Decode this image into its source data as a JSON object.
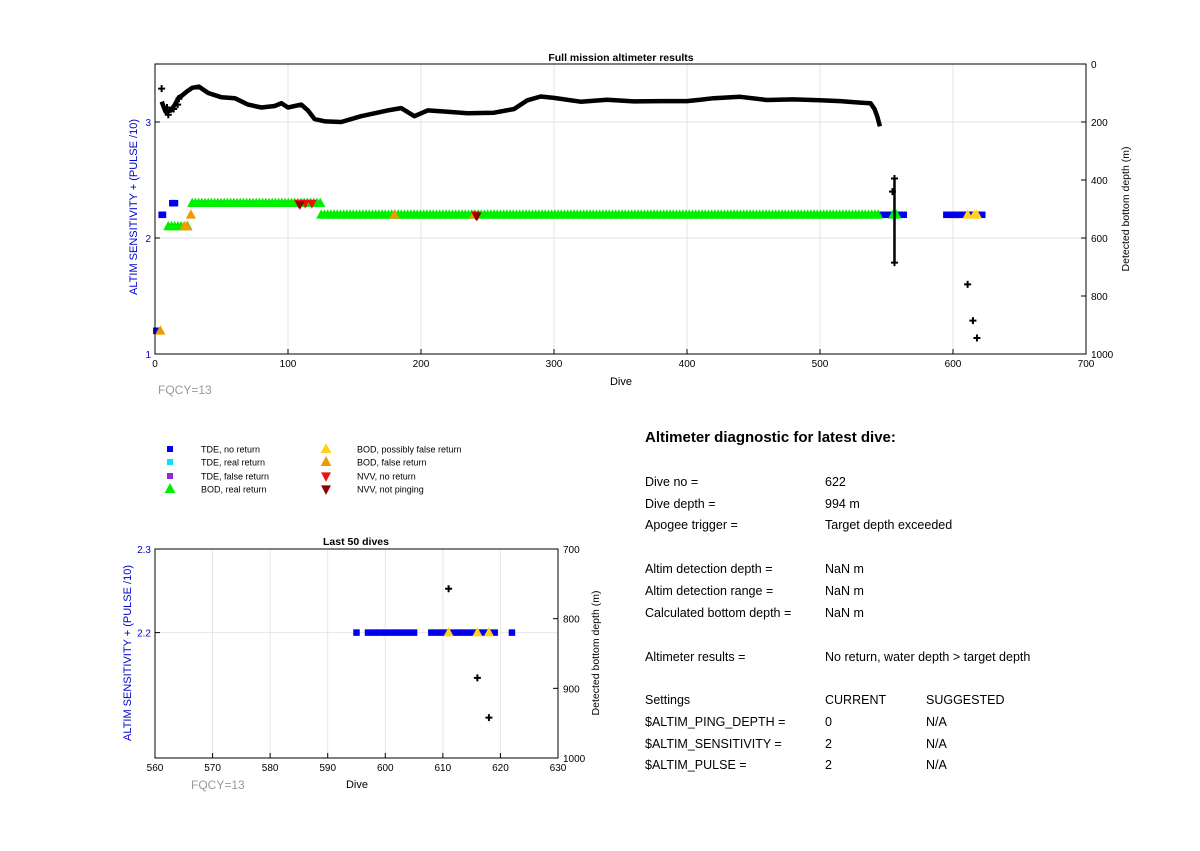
{
  "colors": {
    "axis": "#000000",
    "left_axis": "#0000cc",
    "grid": "#e6e6e6",
    "fqcy": "#999999",
    "tde_no_return": "#0000ee",
    "tde_real_return": "#00e5ee",
    "tde_false_return": "#8a2be2",
    "bod_real_return": "#00ee00",
    "bod_possibly_false": "#ffd21f",
    "bod_false": "#ee9a00",
    "nvv_no_return": "#ee1111",
    "nvv_not_pinging": "#8b0000",
    "bottom_depth": "#000000"
  },
  "chart_data": [
    {
      "id": "full_mission",
      "type": "scatter",
      "title": "Full mission altimeter results",
      "xlabel": "Dive",
      "ylabel_left": "ALTIM SENSITIVITY + (PULSE /10)",
      "ylabel_right": "Detected bottom depth (m)",
      "xlim": [
        0,
        700
      ],
      "ylim_left": [
        1,
        3.5
      ],
      "ylim_right": [
        1000,
        0
      ],
      "right_reversed": true,
      "grid": true,
      "xticks": [
        0,
        100,
        200,
        300,
        400,
        500,
        600,
        700
      ],
      "yticks_left": [
        1,
        2,
        3
      ],
      "yticks_right": [
        0,
        200,
        400,
        600,
        800,
        1000
      ],
      "annotation": "FQCY=13",
      "series": [
        {
          "name": "TDE, no return",
          "marker": "square",
          "color_key": "tde_no_return",
          "points": [
            [
              1,
              1.2
            ],
            [
              2,
              1.2
            ],
            [
              5,
              2.2
            ],
            [
              6,
              2.2
            ],
            [
              13,
              2.3
            ],
            [
              14,
              2.3
            ],
            [
              15,
              2.3
            ],
            [
              545,
              2.2
            ],
            [
              548,
              2.2
            ],
            [
              551,
              2.2
            ],
            [
              554,
              2.2
            ],
            [
              557,
              2.2
            ],
            [
              560,
              2.2
            ],
            [
              563,
              2.2
            ],
            [
              595,
              2.2
            ],
            [
              597,
              2.2
            ],
            [
              599,
              2.2
            ],
            [
              601,
              2.2
            ],
            [
              603,
              2.2
            ],
            [
              605,
              2.2
            ],
            [
              608,
              2.2
            ],
            [
              610,
              2.2
            ],
            [
              612,
              2.2
            ],
            [
              614,
              2.2
            ],
            [
              616,
              2.2
            ],
            [
              618,
              2.2
            ],
            [
              619,
              2.2
            ],
            [
              622,
              2.2
            ]
          ]
        },
        {
          "name": "BOD, real return",
          "marker": "triangle-up",
          "color_key": "bod_real_return",
          "segments": [
            [
              10,
              25,
              2.1
            ],
            [
              28,
              125,
              2.3
            ],
            [
              125,
              545,
              2.2
            ],
            [
              555,
              558,
              2.2
            ]
          ]
        },
        {
          "name": "BOD, possibly false return",
          "marker": "triangle-up",
          "color_key": "bod_possibly_false",
          "points": [
            [
              611,
              2.2
            ],
            [
              616,
              2.2
            ],
            [
              618,
              2.2
            ]
          ]
        },
        {
          "name": "BOD, false return",
          "marker": "triangle-up",
          "color_key": "bod_false",
          "points": [
            [
              4,
              1.2
            ],
            [
              22,
              2.1
            ],
            [
              24,
              2.1
            ],
            [
              27,
              2.2
            ],
            [
              180,
              2.2
            ],
            [
              240,
              2.2
            ]
          ]
        },
        {
          "name": "NVV, no return",
          "marker": "triangle-down",
          "color_key": "nvv_no_return",
          "points": [
            [
              108,
              2.3
            ],
            [
              113,
              2.3
            ],
            [
              118,
              2.3
            ],
            [
              241,
              2.2
            ]
          ]
        },
        {
          "name": "NVV, not pinging",
          "marker": "triangle-down",
          "color_key": "nvv_not_pinging",
          "points": [
            [
              109,
              2.29
            ],
            [
              242,
              2.19
            ]
          ]
        },
        {
          "name": "Detected bottom depth",
          "axis": "right",
          "marker": "plus",
          "color_key": "bottom_depth",
          "line": [
            [
              5,
              130
            ],
            [
              8,
              165
            ],
            [
              12,
              160
            ],
            [
              15,
              140
            ],
            [
              18,
              115
            ],
            [
              20,
              110
            ],
            [
              24,
              95
            ],
            [
              28,
              82
            ],
            [
              33,
              78
            ],
            [
              40,
              100
            ],
            [
              50,
              115
            ],
            [
              60,
              118
            ],
            [
              70,
              140
            ],
            [
              80,
              150
            ],
            [
              90,
              145
            ],
            [
              95,
              135
            ],
            [
              100,
              150
            ],
            [
              110,
              140
            ],
            [
              115,
              160
            ],
            [
              120,
              190
            ],
            [
              128,
              198
            ],
            [
              140,
              200
            ],
            [
              155,
              180
            ],
            [
              165,
              170
            ],
            [
              175,
              160
            ],
            [
              185,
              152
            ],
            [
              195,
              180
            ],
            [
              205,
              160
            ],
            [
              220,
              165
            ],
            [
              235,
              170
            ],
            [
              255,
              168
            ],
            [
              270,
              155
            ],
            [
              280,
              125
            ],
            [
              290,
              112
            ],
            [
              300,
              117
            ],
            [
              320,
              130
            ],
            [
              340,
              123
            ],
            [
              360,
              129
            ],
            [
              380,
              128
            ],
            [
              400,
              128
            ],
            [
              410,
              123
            ],
            [
              420,
              118
            ],
            [
              440,
              113
            ],
            [
              460,
              124
            ],
            [
              480,
              122
            ],
            [
              500,
              125
            ],
            [
              515,
              128
            ],
            [
              530,
              133
            ],
            [
              538,
              135
            ],
            [
              541,
              155
            ],
            [
              543,
              180
            ],
            [
              545,
              215
            ]
          ],
          "isolated": [
            [
              5,
              85
            ],
            [
              9,
              150
            ],
            [
              10,
              175
            ],
            [
              14,
              155
            ],
            [
              17,
              140
            ],
            [
              18,
              120
            ],
            [
              611,
              760
            ],
            [
              615,
              885
            ],
            [
              618,
              945
            ]
          ],
          "vline": {
            "x": 556,
            "y_from": 395,
            "y_to": 685
          }
        }
      ]
    },
    {
      "id": "last_50",
      "type": "scatter",
      "title": "Last 50 dives",
      "xlabel": "Dive",
      "ylabel_left": "ALTIM SENSITIVITY + (PULSE /10)",
      "ylabel_right": "Detected bottom depth (m)",
      "xlim": [
        560,
        630
      ],
      "ylim_left": [
        2.05,
        2.3
      ],
      "ylim_right": [
        1000,
        700
      ],
      "right_reversed": true,
      "grid": true,
      "xticks": [
        560,
        570,
        580,
        590,
        600,
        610,
        620,
        630
      ],
      "yticks_left": [
        2.2,
        2.3
      ],
      "yticks_right": [
        700,
        800,
        900,
        1000
      ],
      "annotation": "FQCY=13",
      "series": [
        {
          "name": "TDE, no return",
          "marker": "square",
          "color_key": "tde_no_return",
          "points": [
            [
              595,
              2.2
            ],
            [
              597,
              2.2
            ],
            [
              598,
              2.2
            ],
            [
              599,
              2.2
            ],
            [
              600,
              2.2
            ],
            [
              601,
              2.2
            ],
            [
              602,
              2.2
            ],
            [
              603,
              2.2
            ],
            [
              604,
              2.2
            ],
            [
              605,
              2.2
            ],
            [
              608,
              2.2
            ],
            [
              609,
              2.2
            ],
            [
              610,
              2.2
            ],
            [
              611,
              2.2
            ],
            [
              612,
              2.2
            ],
            [
              613,
              2.2
            ],
            [
              614,
              2.2
            ],
            [
              615,
              2.2
            ],
            [
              616,
              2.2
            ],
            [
              617,
              2.2
            ],
            [
              618,
              2.2
            ],
            [
              619,
              2.2
            ],
            [
              622,
              2.2
            ]
          ]
        },
        {
          "name": "BOD, possibly false return",
          "marker": "triangle-up",
          "color_key": "bod_possibly_false",
          "points": [
            [
              611,
              2.2
            ],
            [
              616,
              2.2
            ],
            [
              618,
              2.2
            ]
          ]
        },
        {
          "name": "Detected bottom depth",
          "axis": "right",
          "marker": "plus",
          "color_key": "bottom_depth",
          "isolated": [
            [
              611,
              757
            ],
            [
              616,
              885
            ],
            [
              618,
              942
            ]
          ]
        }
      ]
    }
  ],
  "legend": {
    "placement": "below-top-chart",
    "entries": [
      {
        "label": "TDE, no return",
        "marker": "square",
        "color_key": "tde_no_return"
      },
      {
        "label": "BOD, possibly false return",
        "marker": "triangle-up",
        "color_key": "bod_possibly_false"
      },
      {
        "label": "TDE, real return",
        "marker": "square",
        "color_key": "tde_real_return"
      },
      {
        "label": "BOD, false return",
        "marker": "triangle-up",
        "color_key": "bod_false"
      },
      {
        "label": "TDE, false return",
        "marker": "square",
        "color_key": "tde_false_return"
      },
      {
        "label": "NVV, no return",
        "marker": "triangle-down",
        "color_key": "nvv_no_return"
      },
      {
        "label": "BOD, real return",
        "marker": "triangle-up",
        "color_key": "bod_real_return"
      },
      {
        "label": "NVV, not pinging",
        "marker": "triangle-down",
        "color_key": "nvv_not_pinging"
      }
    ]
  },
  "diagnostic": {
    "title": "Altimeter diagnostic for latest dive:",
    "dive_no_label": "Dive no =",
    "dive_no": "622",
    "dive_depth_label": "Dive depth =",
    "dive_depth": "994 m",
    "apogee_label": "Apogee trigger =",
    "apogee": "Target depth exceeded",
    "det_depth_label": "Altim detection depth =",
    "det_depth": "NaN m",
    "det_range_label": "Altim detection range =",
    "det_range": "NaN m",
    "calc_depth_label": "Calculated bottom depth =",
    "calc_depth": "NaN m",
    "results_label": "Altimeter results =",
    "results": "No return, water depth > target depth",
    "settings_header": "Settings",
    "current_header": "CURRENT",
    "suggested_header": "SUGGESTED",
    "settings": [
      {
        "name": "$ALTIM_PING_DEPTH =",
        "current": "0",
        "suggested": "N/A"
      },
      {
        "name": "$ALTIM_SENSITIVITY =",
        "current": "2",
        "suggested": "N/A"
      },
      {
        "name": "$ALTIM_PULSE =",
        "current": "2",
        "suggested": "N/A"
      }
    ]
  }
}
